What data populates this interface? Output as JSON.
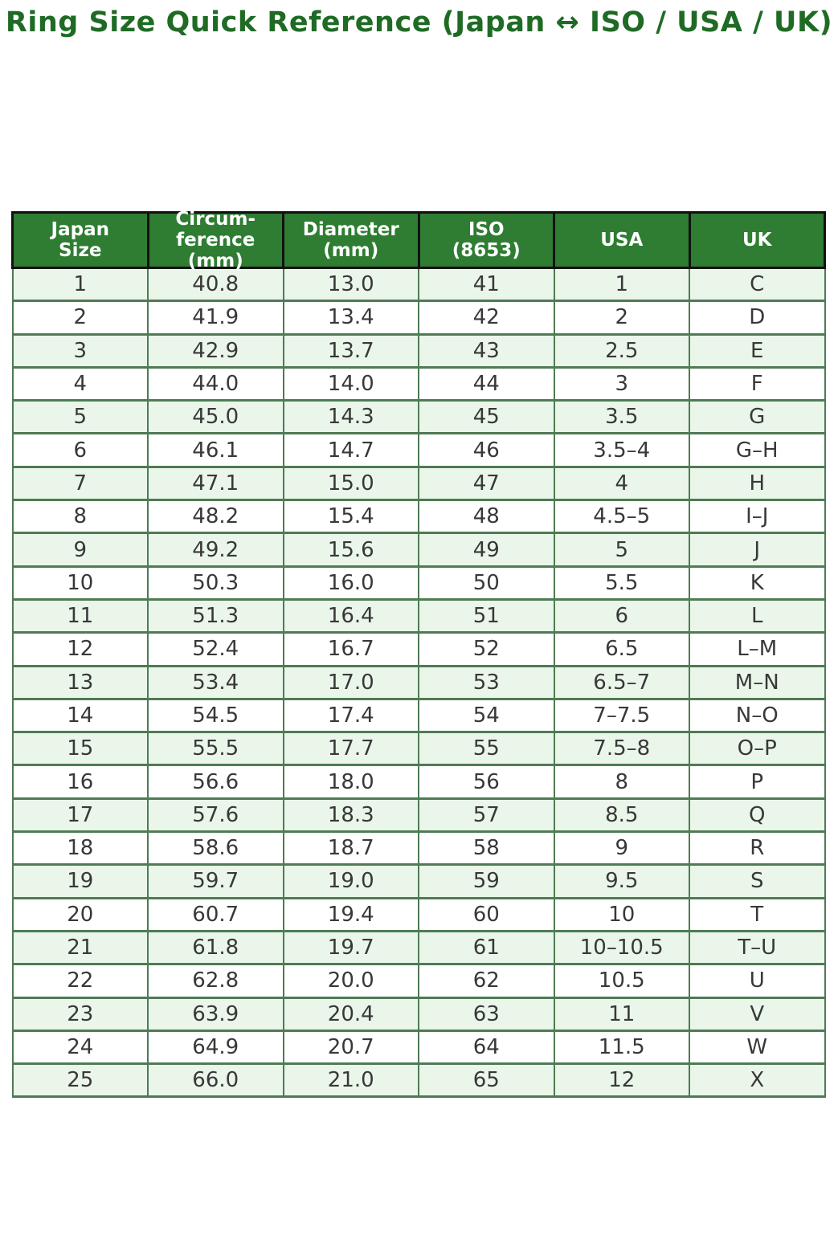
{
  "title": "Ring Size Quick Reference (Japan ↔ ISO / USA / UK)",
  "chart_data": {
    "type": "table",
    "title": "Ring Size Quick Reference (Japan ↔ ISO / USA / UK)",
    "columns": [
      "Japan\nSize",
      "Circum-\nference\n(mm)",
      "Diameter\n(mm)",
      "ISO\n(8653)",
      "USA",
      "UK"
    ],
    "rows": [
      [
        "1",
        "40.8",
        "13.0",
        "41",
        "1",
        "C"
      ],
      [
        "2",
        "41.9",
        "13.4",
        "42",
        "2",
        "D"
      ],
      [
        "3",
        "42.9",
        "13.7",
        "43",
        "2.5",
        "E"
      ],
      [
        "4",
        "44.0",
        "14.0",
        "44",
        "3",
        "F"
      ],
      [
        "5",
        "45.0",
        "14.3",
        "45",
        "3.5",
        "G"
      ],
      [
        "6",
        "46.1",
        "14.7",
        "46",
        "3.5–4",
        "G–H"
      ],
      [
        "7",
        "47.1",
        "15.0",
        "47",
        "4",
        "H"
      ],
      [
        "8",
        "48.2",
        "15.4",
        "48",
        "4.5–5",
        "I–J"
      ],
      [
        "9",
        "49.2",
        "15.6",
        "49",
        "5",
        "J"
      ],
      [
        "10",
        "50.3",
        "16.0",
        "50",
        "5.5",
        "K"
      ],
      [
        "11",
        "51.3",
        "16.4",
        "51",
        "6",
        "L"
      ],
      [
        "12",
        "52.4",
        "16.7",
        "52",
        "6.5",
        "L–M"
      ],
      [
        "13",
        "53.4",
        "17.0",
        "53",
        "6.5–7",
        "M–N"
      ],
      [
        "14",
        "54.5",
        "17.4",
        "54",
        "7–7.5",
        "N–O"
      ],
      [
        "15",
        "55.5",
        "17.7",
        "55",
        "7.5–8",
        "O–P"
      ],
      [
        "16",
        "56.6",
        "18.0",
        "56",
        "8",
        "P"
      ],
      [
        "17",
        "57.6",
        "18.3",
        "57",
        "8.5",
        "Q"
      ],
      [
        "18",
        "58.6",
        "18.7",
        "58",
        "9",
        "R"
      ],
      [
        "19",
        "59.7",
        "19.0",
        "59",
        "9.5",
        "S"
      ],
      [
        "20",
        "60.7",
        "19.4",
        "60",
        "10",
        "T"
      ],
      [
        "21",
        "61.8",
        "19.7",
        "61",
        "10–10.5",
        "T–U"
      ],
      [
        "22",
        "62.8",
        "20.0",
        "62",
        "10.5",
        "U"
      ],
      [
        "23",
        "63.9",
        "20.4",
        "63",
        "11",
        "V"
      ],
      [
        "24",
        "64.9",
        "20.7",
        "64",
        "11.5",
        "W"
      ],
      [
        "25",
        "66.0",
        "21.0",
        "65",
        "12",
        "X"
      ]
    ],
    "layout": {
      "striped": true,
      "stripe_applies_to": "odd_rows"
    }
  },
  "colors": {
    "title_text": "#1f6b25",
    "header_bg": "#2e7d32",
    "header_text": "#ffffff",
    "header_border": "#111111",
    "body_border": "#4e7b54",
    "stripe_row_bg": "#eaf6ea",
    "plain_row_bg": "#ffffff",
    "body_text": "#383838",
    "page_bg": "#ffffff"
  }
}
